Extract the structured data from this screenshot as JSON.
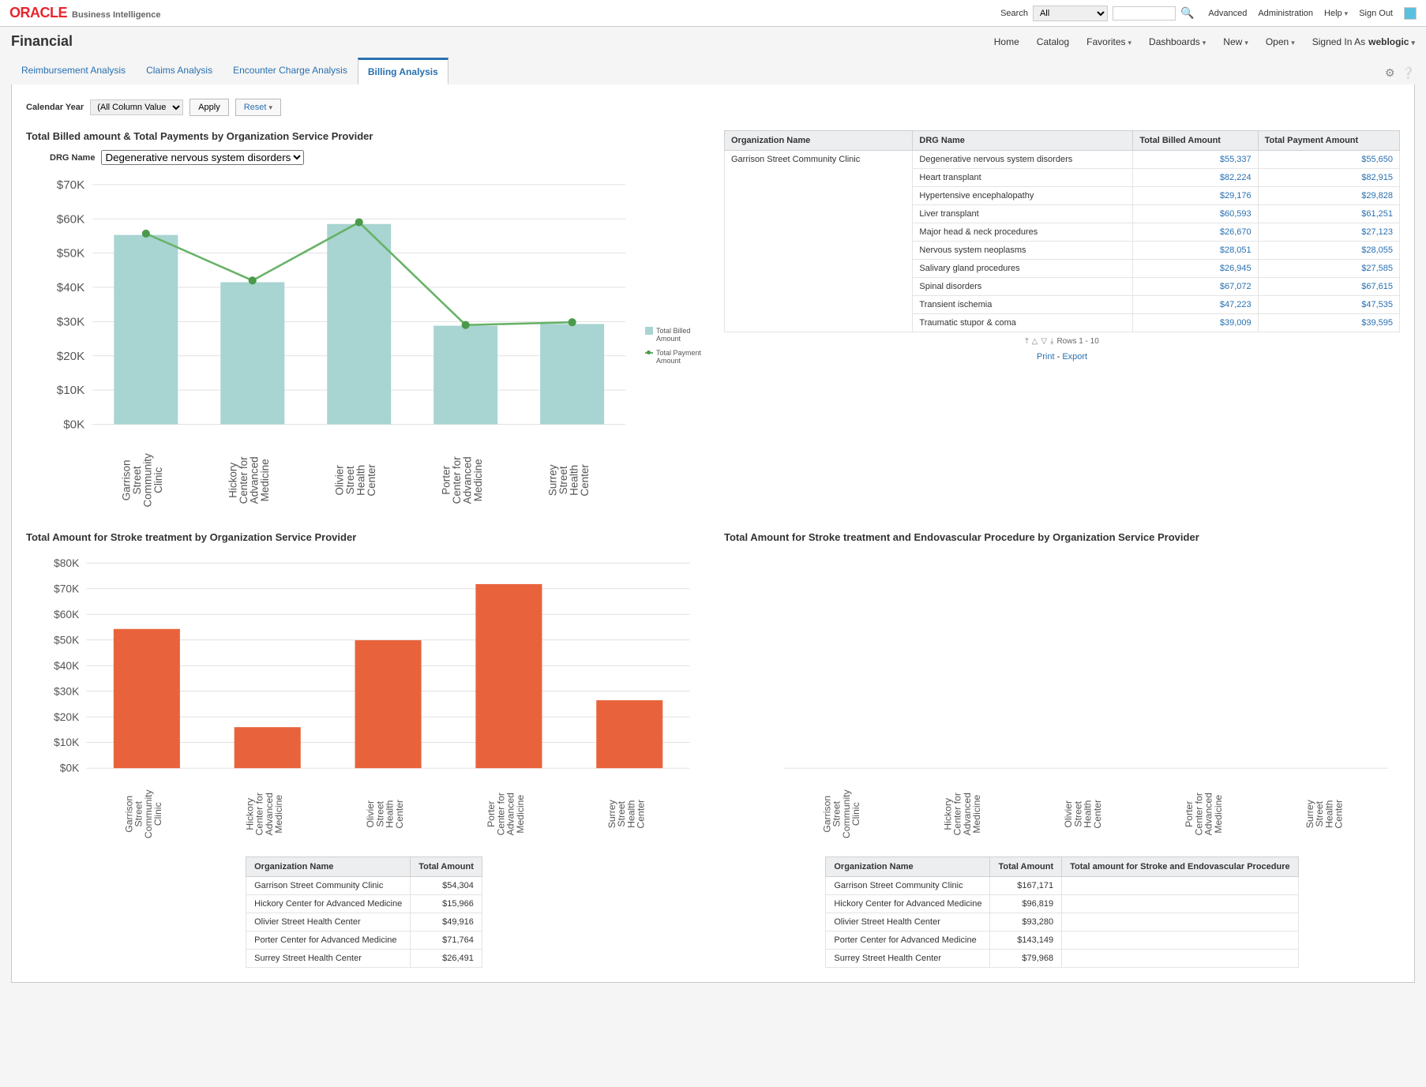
{
  "topbar": {
    "brand": "ORACLE",
    "brand_sub": "Business Intelligence",
    "search_label": "Search",
    "search_scope": "All",
    "links": [
      "Advanced",
      "Administration",
      "Help",
      "Sign Out"
    ]
  },
  "nav": {
    "page_title": "Financial",
    "items": [
      "Home",
      "Catalog",
      "Favorites",
      "Dashboards",
      "New",
      "Open"
    ],
    "signed_in_label": "Signed In As",
    "user": "weblogic"
  },
  "tabs": [
    "Reimbursement Analysis",
    "Claims Analysis",
    "Encounter Charge Analysis",
    "Billing Analysis"
  ],
  "active_tab": 3,
  "filters": {
    "cal_year_label": "Calendar Year",
    "cal_year_value": "(All Column Value",
    "apply": "Apply",
    "reset": "Reset"
  },
  "chart1": {
    "title": "Total Billed amount & Total Payments by Organization Service Provider",
    "drg_label": "DRG Name",
    "drg_value": "Degenerative nervous system disorders",
    "legend_bar": "Total Billed Amount",
    "legend_line": "Total Payment Amount",
    "ylim": [
      0,
      70
    ],
    "ytick": 10,
    "yprefix": "$",
    "ysuffix": "K",
    "bar_color": "#a8d4d2",
    "line_color": "#66b266",
    "marker_color": "#4a9a4a",
    "grid_color": "#d8d8d8",
    "background": "#ffffff",
    "categories": [
      "Garrison Street Community Clinic",
      "Hickory Center for Advanced Medicine",
      "Olivier Street Health Center",
      "Porter Center for Advanced Medicine",
      "Surrey Street Health Center"
    ],
    "billed": [
      55.3,
      41.5,
      58.5,
      28.8,
      29.3
    ],
    "payment": [
      55.7,
      42.0,
      59.0,
      29.0,
      29.8
    ]
  },
  "table1": {
    "columns": [
      "Organization Name",
      "DRG Name",
      "Total Billed Amount",
      "Total Payment Amount"
    ],
    "org": "Garrison Street Community Clinic",
    "rows": [
      [
        "Degenerative nervous system disorders",
        "$55,337",
        "$55,650"
      ],
      [
        "Heart transplant",
        "$82,224",
        "$82,915"
      ],
      [
        "Hypertensive encephalopathy",
        "$29,176",
        "$29,828"
      ],
      [
        "Liver transplant",
        "$60,593",
        "$61,251"
      ],
      [
        "Major head & neck procedures",
        "$26,670",
        "$27,123"
      ],
      [
        "Nervous system neoplasms",
        "$28,051",
        "$28,055"
      ],
      [
        "Salivary gland procedures",
        "$26,945",
        "$27,585"
      ],
      [
        "Spinal disorders",
        "$67,072",
        "$67,615"
      ],
      [
        "Transient ischemia",
        "$47,223",
        "$47,535"
      ],
      [
        "Traumatic stupor & coma",
        "$39,009",
        "$39,595"
      ]
    ],
    "pager": "Rows 1 - 10",
    "print": "Print",
    "export": "Export"
  },
  "chart2": {
    "title": "Total Amount for Stroke treatment by Organization Service Provider",
    "ylim": [
      0,
      80
    ],
    "ytick": 10,
    "yprefix": "$",
    "ysuffix": "K",
    "bar_color": "#e8633c",
    "grid_color": "#d8d8d8",
    "categories": [
      "Garrison Street Community Clinic",
      "Hickory Center for Advanced Medicine",
      "Olivier Street Health Center",
      "Porter Center for Advanced Medicine",
      "Surrey Street Health Center"
    ],
    "values": [
      54.3,
      16.0,
      49.9,
      71.8,
      26.5
    ]
  },
  "table2": {
    "columns": [
      "Organization Name",
      "Total Amount"
    ],
    "rows": [
      [
        "Garrison Street Community Clinic",
        "$54,304"
      ],
      [
        "Hickory Center for Advanced Medicine",
        "$15,966"
      ],
      [
        "Olivier Street Health Center",
        "$49,916"
      ],
      [
        "Porter Center for Advanced Medicine",
        "$71,764"
      ],
      [
        "Surrey Street Health Center",
        "$26,491"
      ]
    ]
  },
  "chart3": {
    "title": "Total Amount for Stroke treatment and Endovascular Procedure by Organization Service Provider",
    "categories": [
      "Garrison Street Community Clinic",
      "Hickory Center for Advanced Medicine",
      "Olivier Street Health Center",
      "Porter Center for Advanced Medicine",
      "Surrey Street Health Center"
    ]
  },
  "table3": {
    "columns": [
      "Organization Name",
      "Total Amount",
      "Total amount for Stroke and Endovascular Procedure"
    ],
    "rows": [
      [
        "Garrison Street Community Clinic",
        "$167,171",
        ""
      ],
      [
        "Hickory Center for Advanced Medicine",
        "$96,819",
        ""
      ],
      [
        "Olivier Street Health Center",
        "$93,280",
        ""
      ],
      [
        "Porter Center for Advanced Medicine",
        "$143,149",
        ""
      ],
      [
        "Surrey Street Health Center",
        "$79,968",
        ""
      ]
    ]
  }
}
